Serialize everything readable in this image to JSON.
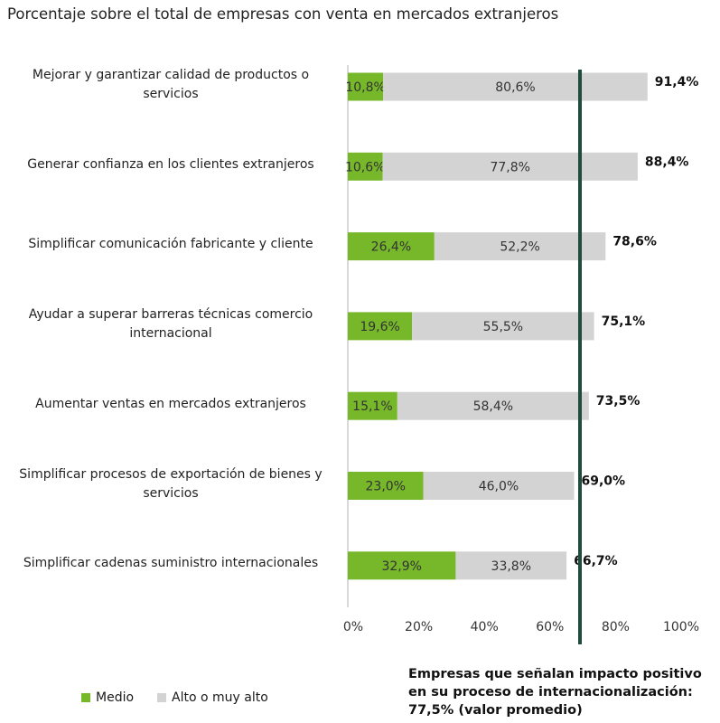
{
  "chart_data": {
    "type": "bar",
    "orientation": "horizontal",
    "stacked": true,
    "title": "Porcentaje sobre el total de empresas con venta en mercados extranjeros",
    "categories": [
      "Mejorar y garantizar calidad de productos o servicios",
      "Generar confianza en los clientes extranjeros",
      "Simplificar comunicación fabricante y cliente",
      "Ayudar a superar barreras técnicas comercio internacional",
      "Aumentar ventas en mercados extranjeros",
      "Simplificar procesos de exportación de bienes y servicios",
      "Simplificar cadenas suministro internacionales"
    ],
    "series": [
      {
        "name": "Medio",
        "color": "#76b82a",
        "values": [
          10.8,
          10.6,
          26.4,
          19.6,
          15.1,
          23.0,
          32.9
        ],
        "labels": [
          "10,8%",
          "10,6%",
          "26,4%",
          "19,6%",
          "15,1%",
          "23,0%",
          "32,9%"
        ]
      },
      {
        "name": "Alto o muy alto",
        "color": "#d3d3d3",
        "values": [
          80.6,
          77.8,
          52.2,
          55.5,
          58.4,
          46.0,
          33.8
        ],
        "labels": [
          "80,6%",
          "77,8%",
          "52,2%",
          "55,5%",
          "58,4%",
          "46,0%",
          "33,8%"
        ]
      }
    ],
    "totals": [
      91.4,
      88.4,
      78.6,
      75.1,
      73.5,
      69.0,
      66.7
    ],
    "total_labels": [
      "91,4%",
      "88,4%",
      "78,6%",
      "75,1%",
      "73,5%",
      "69,0%",
      "66,7%"
    ],
    "xlim": [
      0,
      100
    ],
    "xticks": [
      "0%",
      "20%",
      "40%",
      "60%",
      "80%",
      "100%"
    ],
    "reference_line": {
      "color": "#1e4d3c",
      "annotation": "Empresas que señalan impacto positivo en su proceso de internacionalización: 77,5% (valor promedio)"
    },
    "legend_position": "bottom-left",
    "grid": false
  }
}
